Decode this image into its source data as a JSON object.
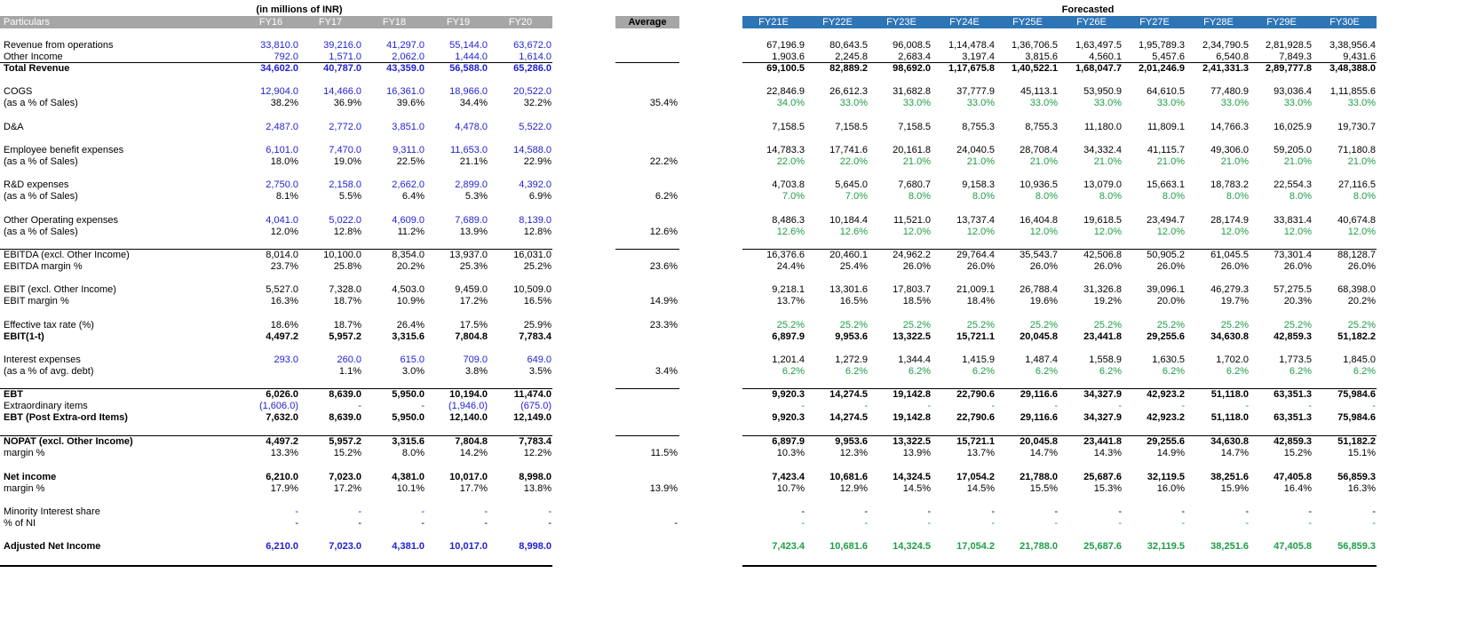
{
  "title": "(in millions of INR)",
  "forecast_label": "Forecasted",
  "average_label": "Average",
  "particulars_label": "Particulars",
  "hist_years": [
    "FY16",
    "FY17",
    "FY18",
    "FY19",
    "FY20"
  ],
  "fc_years": [
    "FY21E",
    "FY22E",
    "FY23E",
    "FY24E",
    "FY25E",
    "FY26E",
    "FY27E",
    "FY28E",
    "FY29E",
    "FY30E"
  ],
  "colors": {
    "header_grey": "#a6a6a6",
    "header_blue": "#2e75b6",
    "input_blue": "#1f1fd4",
    "assump_green": "#1e9e46"
  },
  "rows": [
    {
      "label": "Revenue from operations",
      "hist": [
        "33,810.0",
        "39,216.0",
        "41,297.0",
        "55,144.0",
        "63,672.0"
      ],
      "avg": "",
      "fc": [
        "67,196.9",
        "80,643.5",
        "96,008.5",
        "1,14,478.4",
        "1,36,706.5",
        "1,63,497.5",
        "1,95,789.3",
        "2,34,790.5",
        "2,81,928.5",
        "3,38,956.4"
      ],
      "hist_color": "blue",
      "fc_color": "black",
      "bold": false
    },
    {
      "label": "Other Income",
      "hist": [
        "792.0",
        "1,571.0",
        "2,062.0",
        "1,444.0",
        "1,614.0"
      ],
      "avg": "",
      "fc": [
        "1,903.6",
        "2,245.8",
        "2,683.4",
        "3,197.4",
        "3,815.6",
        "4,560.1",
        "5,457.6",
        "6,540.8",
        "7,849.3",
        "9,431.6"
      ],
      "hist_color": "blue",
      "fc_color": "black",
      "bold": false
    },
    {
      "label": "Total Revenue",
      "hist": [
        "34,602.0",
        "40,787.0",
        "43,359.0",
        "56,588.0",
        "65,286.0"
      ],
      "avg": "",
      "fc": [
        "69,100.5",
        "82,889.2",
        "98,692.0",
        "1,17,675.8",
        "1,40,522.1",
        "1,68,047.7",
        "2,01,246.9",
        "2,41,331.3",
        "2,89,777.8",
        "3,48,388.0"
      ],
      "hist_color": "blue",
      "fc_color": "black",
      "bold": true
    },
    {
      "label": "COGS",
      "hist": [
        "12,904.0",
        "14,466.0",
        "16,361.0",
        "18,966.0",
        "20,522.0"
      ],
      "avg": "",
      "fc": [
        "22,846.9",
        "26,612.3",
        "31,682.8",
        "37,777.9",
        "45,113.1",
        "53,950.9",
        "64,610.5",
        "77,480.9",
        "93,036.4",
        "1,11,855.6"
      ],
      "hist_color": "blue",
      "fc_color": "black",
      "bold": false
    },
    {
      "label": "(as a % of Sales)",
      "hist": [
        "38.2%",
        "36.9%",
        "39.6%",
        "34.4%",
        "32.2%"
      ],
      "avg": "35.4%",
      "fc": [
        "34.0%",
        "33.0%",
        "33.0%",
        "33.0%",
        "33.0%",
        "33.0%",
        "33.0%",
        "33.0%",
        "33.0%",
        "33.0%"
      ],
      "hist_color": "black",
      "fc_color": "green",
      "bold": false
    },
    {
      "label": "D&A",
      "hist": [
        "2,487.0",
        "2,772.0",
        "3,851.0",
        "4,478.0",
        "5,522.0"
      ],
      "avg": "",
      "fc": [
        "7,158.5",
        "7,158.5",
        "7,158.5",
        "8,755.3",
        "8,755.3",
        "11,180.0",
        "11,809.1",
        "14,766.3",
        "16,025.9",
        "19,730.7"
      ],
      "hist_color": "blue",
      "fc_color": "black",
      "bold": false
    },
    {
      "label": "Employee benefit expenses",
      "hist": [
        "6,101.0",
        "7,470.0",
        "9,311.0",
        "11,653.0",
        "14,588.0"
      ],
      "avg": "",
      "fc": [
        "14,783.3",
        "17,741.6",
        "20,161.8",
        "24,040.5",
        "28,708.4",
        "34,332.4",
        "41,115.7",
        "49,306.0",
        "59,205.0",
        "71,180.8"
      ],
      "hist_color": "blue",
      "fc_color": "black",
      "bold": false
    },
    {
      "label": "(as a % of Sales)",
      "hist": [
        "18.0%",
        "19.0%",
        "22.5%",
        "21.1%",
        "22.9%"
      ],
      "avg": "22.2%",
      "fc": [
        "22.0%",
        "22.0%",
        "21.0%",
        "21.0%",
        "21.0%",
        "21.0%",
        "21.0%",
        "21.0%",
        "21.0%",
        "21.0%"
      ],
      "hist_color": "black",
      "fc_color": "green",
      "bold": false
    },
    {
      "label": "R&D expenses",
      "hist": [
        "2,750.0",
        "2,158.0",
        "2,662.0",
        "2,899.0",
        "4,392.0"
      ],
      "avg": "",
      "fc": [
        "4,703.8",
        "5,645.0",
        "7,680.7",
        "9,158.3",
        "10,936.5",
        "13,079.0",
        "15,663.1",
        "18,783.2",
        "22,554.3",
        "27,116.5"
      ],
      "hist_color": "blue",
      "fc_color": "black",
      "bold": false
    },
    {
      "label": "(as a % of Sales)",
      "hist": [
        "8.1%",
        "5.5%",
        "6.4%",
        "5.3%",
        "6.9%"
      ],
      "avg": "6.2%",
      "fc": [
        "7.0%",
        "7.0%",
        "8.0%",
        "8.0%",
        "8.0%",
        "8.0%",
        "8.0%",
        "8.0%",
        "8.0%",
        "8.0%"
      ],
      "hist_color": "black",
      "fc_color": "green",
      "bold": false
    },
    {
      "label": "Other Operating expenses",
      "hist": [
        "4,041.0",
        "5,022.0",
        "4,609.0",
        "7,689.0",
        "8,139.0"
      ],
      "avg": "",
      "fc": [
        "8,486.3",
        "10,184.4",
        "11,521.0",
        "13,737.4",
        "16,404.8",
        "19,618.5",
        "23,494.7",
        "28,174.9",
        "33,831.4",
        "40,674.8"
      ],
      "hist_color": "blue",
      "fc_color": "black",
      "bold": false
    },
    {
      "label": "(as a % of Sales)",
      "hist": [
        "12.0%",
        "12.8%",
        "11.2%",
        "13.9%",
        "12.8%"
      ],
      "avg": "12.6%",
      "fc": [
        "12.6%",
        "12.6%",
        "12.0%",
        "12.0%",
        "12.0%",
        "12.0%",
        "12.0%",
        "12.0%",
        "12.0%",
        "12.0%"
      ],
      "hist_color": "black",
      "fc_color": "green",
      "bold": false
    },
    {
      "label": "EBITDA (excl. Other Income)",
      "hist": [
        "8,014.0",
        "10,100.0",
        "8,354.0",
        "13,937.0",
        "16,031.0"
      ],
      "avg": "",
      "fc": [
        "16,376.6",
        "20,460.1",
        "24,962.2",
        "29,764.4",
        "35,543.7",
        "42,506.8",
        "50,905.2",
        "61,045.5",
        "73,301.4",
        "88,128.7"
      ],
      "hist_color": "black",
      "fc_color": "black",
      "bold": false
    },
    {
      "label": "EBITDA margin %",
      "hist": [
        "23.7%",
        "25.8%",
        "20.2%",
        "25.3%",
        "25.2%"
      ],
      "avg": "23.6%",
      "fc": [
        "24.4%",
        "25.4%",
        "26.0%",
        "26.0%",
        "26.0%",
        "26.0%",
        "26.0%",
        "26.0%",
        "26.0%",
        "26.0%"
      ],
      "hist_color": "black",
      "fc_color": "black",
      "bold": false
    },
    {
      "label": "EBIT (excl. Other Income)",
      "hist": [
        "5,527.0",
        "7,328.0",
        "4,503.0",
        "9,459.0",
        "10,509.0"
      ],
      "avg": "",
      "fc": [
        "9,218.1",
        "13,301.6",
        "17,803.7",
        "21,009.1",
        "26,788.4",
        "31,326.8",
        "39,096.1",
        "46,279.3",
        "57,275.5",
        "68,398.0"
      ],
      "hist_color": "black",
      "fc_color": "black",
      "bold": false
    },
    {
      "label": "EBIT margin %",
      "hist": [
        "16.3%",
        "18.7%",
        "10.9%",
        "17.2%",
        "16.5%"
      ],
      "avg": "14.9%",
      "fc": [
        "13.7%",
        "16.5%",
        "18.5%",
        "18.4%",
        "19.6%",
        "19.2%",
        "20.0%",
        "19.7%",
        "20.3%",
        "20.2%"
      ],
      "hist_color": "black",
      "fc_color": "black",
      "bold": false
    },
    {
      "label": "Effective tax rate (%)",
      "hist": [
        "18.6%",
        "18.7%",
        "26.4%",
        "17.5%",
        "25.9%"
      ],
      "avg": "23.3%",
      "fc": [
        "25.2%",
        "25.2%",
        "25.2%",
        "25.2%",
        "25.2%",
        "25.2%",
        "25.2%",
        "25.2%",
        "25.2%",
        "25.2%"
      ],
      "hist_color": "black",
      "fc_color": "green",
      "bold": false
    },
    {
      "label": "EBIT(1-t)",
      "hist": [
        "4,497.2",
        "5,957.2",
        "3,315.6",
        "7,804.8",
        "7,783.4"
      ],
      "avg": "",
      "fc": [
        "6,897.9",
        "9,953.6",
        "13,322.5",
        "15,721.1",
        "20,045.8",
        "23,441.8",
        "29,255.6",
        "34,630.8",
        "42,859.3",
        "51,182.2"
      ],
      "hist_color": "black",
      "fc_color": "black",
      "bold": true
    },
    {
      "label": "Interest expenses",
      "hist": [
        "293.0",
        "260.0",
        "615.0",
        "709.0",
        "649.0"
      ],
      "avg": "",
      "fc": [
        "1,201.4",
        "1,272.9",
        "1,344.4",
        "1,415.9",
        "1,487.4",
        "1,558.9",
        "1,630.5",
        "1,702.0",
        "1,773.5",
        "1,845.0"
      ],
      "hist_color": "blue",
      "fc_color": "black",
      "bold": false
    },
    {
      "label": "(as a % of avg. debt)",
      "hist": [
        "",
        "1.1%",
        "3.0%",
        "3.8%",
        "3.5%"
      ],
      "avg": "3.4%",
      "fc": [
        "6.2%",
        "6.2%",
        "6.2%",
        "6.2%",
        "6.2%",
        "6.2%",
        "6.2%",
        "6.2%",
        "6.2%",
        "6.2%"
      ],
      "hist_color": "black",
      "fc_color": "green",
      "bold": false
    },
    {
      "label": "EBT",
      "hist": [
        "6,026.0",
        "8,639.0",
        "5,950.0",
        "10,194.0",
        "11,474.0"
      ],
      "avg": "",
      "fc": [
        "9,920.3",
        "14,274.5",
        "19,142.8",
        "22,790.6",
        "29,116.6",
        "34,327.9",
        "42,923.2",
        "51,118.0",
        "63,351.3",
        "75,984.6"
      ],
      "hist_color": "black",
      "fc_color": "black",
      "bold": true
    },
    {
      "label": "Extraordinary items",
      "hist": [
        "(1,606.0)",
        "-",
        "-",
        "(1,946.0)",
        "(675.0)"
      ],
      "avg": "",
      "fc": [
        "-",
        "-",
        "-",
        "-",
        "-",
        "-",
        "-",
        "-",
        "-",
        "-"
      ],
      "hist_color": "blue",
      "fc_color": "green",
      "bold": false
    },
    {
      "label": "EBT (Post Extra-ord Items)",
      "hist": [
        "7,632.0",
        "8,639.0",
        "5,950.0",
        "12,140.0",
        "12,149.0"
      ],
      "avg": "",
      "fc": [
        "9,920.3",
        "14,274.5",
        "19,142.8",
        "22,790.6",
        "29,116.6",
        "34,327.9",
        "42,923.2",
        "51,118.0",
        "63,351.3",
        "75,984.6"
      ],
      "hist_color": "black",
      "fc_color": "black",
      "bold": true
    },
    {
      "label": "NOPAT (excl. Other Income)",
      "hist": [
        "4,497.2",
        "5,957.2",
        "3,315.6",
        "7,804.8",
        "7,783.4"
      ],
      "avg": "",
      "fc": [
        "6,897.9",
        "9,953.6",
        "13,322.5",
        "15,721.1",
        "20,045.8",
        "23,441.8",
        "29,255.6",
        "34,630.8",
        "42,859.3",
        "51,182.2"
      ],
      "hist_color": "black",
      "fc_color": "black",
      "bold": true
    },
    {
      "label": "margin %",
      "hist": [
        "13.3%",
        "15.2%",
        "8.0%",
        "14.2%",
        "12.2%"
      ],
      "avg": "11.5%",
      "fc": [
        "10.3%",
        "12.3%",
        "13.9%",
        "13.7%",
        "14.7%",
        "14.3%",
        "14.9%",
        "14.7%",
        "15.2%",
        "15.1%"
      ],
      "hist_color": "black",
      "fc_color": "black",
      "bold": false
    },
    {
      "label": "Net income",
      "hist": [
        "6,210.0",
        "7,023.0",
        "4,381.0",
        "10,017.0",
        "8,998.0"
      ],
      "avg": "",
      "fc": [
        "7,423.4",
        "10,681.6",
        "14,324.5",
        "17,054.2",
        "21,788.0",
        "25,687.6",
        "32,119.5",
        "38,251.6",
        "47,405.8",
        "56,859.3"
      ],
      "hist_color": "black",
      "fc_color": "black",
      "bold": true
    },
    {
      "label": "margin %",
      "hist": [
        "17.9%",
        "17.2%",
        "10.1%",
        "17.7%",
        "13.8%"
      ],
      "avg": "13.9%",
      "fc": [
        "10.7%",
        "12.9%",
        "14.5%",
        "14.5%",
        "15.5%",
        "15.3%",
        "16.0%",
        "15.9%",
        "16.4%",
        "16.3%"
      ],
      "hist_color": "black",
      "fc_color": "black",
      "bold": false
    },
    {
      "label": "Minority Interest share",
      "hist": [
        "-",
        "-",
        "-",
        "-",
        "-"
      ],
      "avg": "",
      "fc": [
        "-",
        "-",
        "-",
        "-",
        "-",
        "-",
        "-",
        "-",
        "-",
        "-"
      ],
      "hist_color": "blue",
      "fc_color": "black",
      "bold": false
    },
    {
      "label": "% of NI",
      "hist": [
        "-",
        "-",
        "-",
        "-",
        "-"
      ],
      "avg": "-",
      "fc": [
        "-",
        "-",
        "-",
        "-",
        "-",
        "-",
        "-",
        "-",
        "-",
        "-"
      ],
      "hist_color": "black",
      "fc_color": "green",
      "bold": false
    },
    {
      "label": "Adjusted Net Income",
      "hist": [
        "6,210.0",
        "7,023.0",
        "4,381.0",
        "10,017.0",
        "8,998.0"
      ],
      "avg": "",
      "fc": [
        "7,423.4",
        "10,681.6",
        "14,324.5",
        "17,054.2",
        "21,788.0",
        "25,687.6",
        "32,119.5",
        "38,251.6",
        "47,405.8",
        "56,859.3"
      ],
      "hist_color": "blue",
      "fc_color": "green",
      "bold": true
    }
  ]
}
